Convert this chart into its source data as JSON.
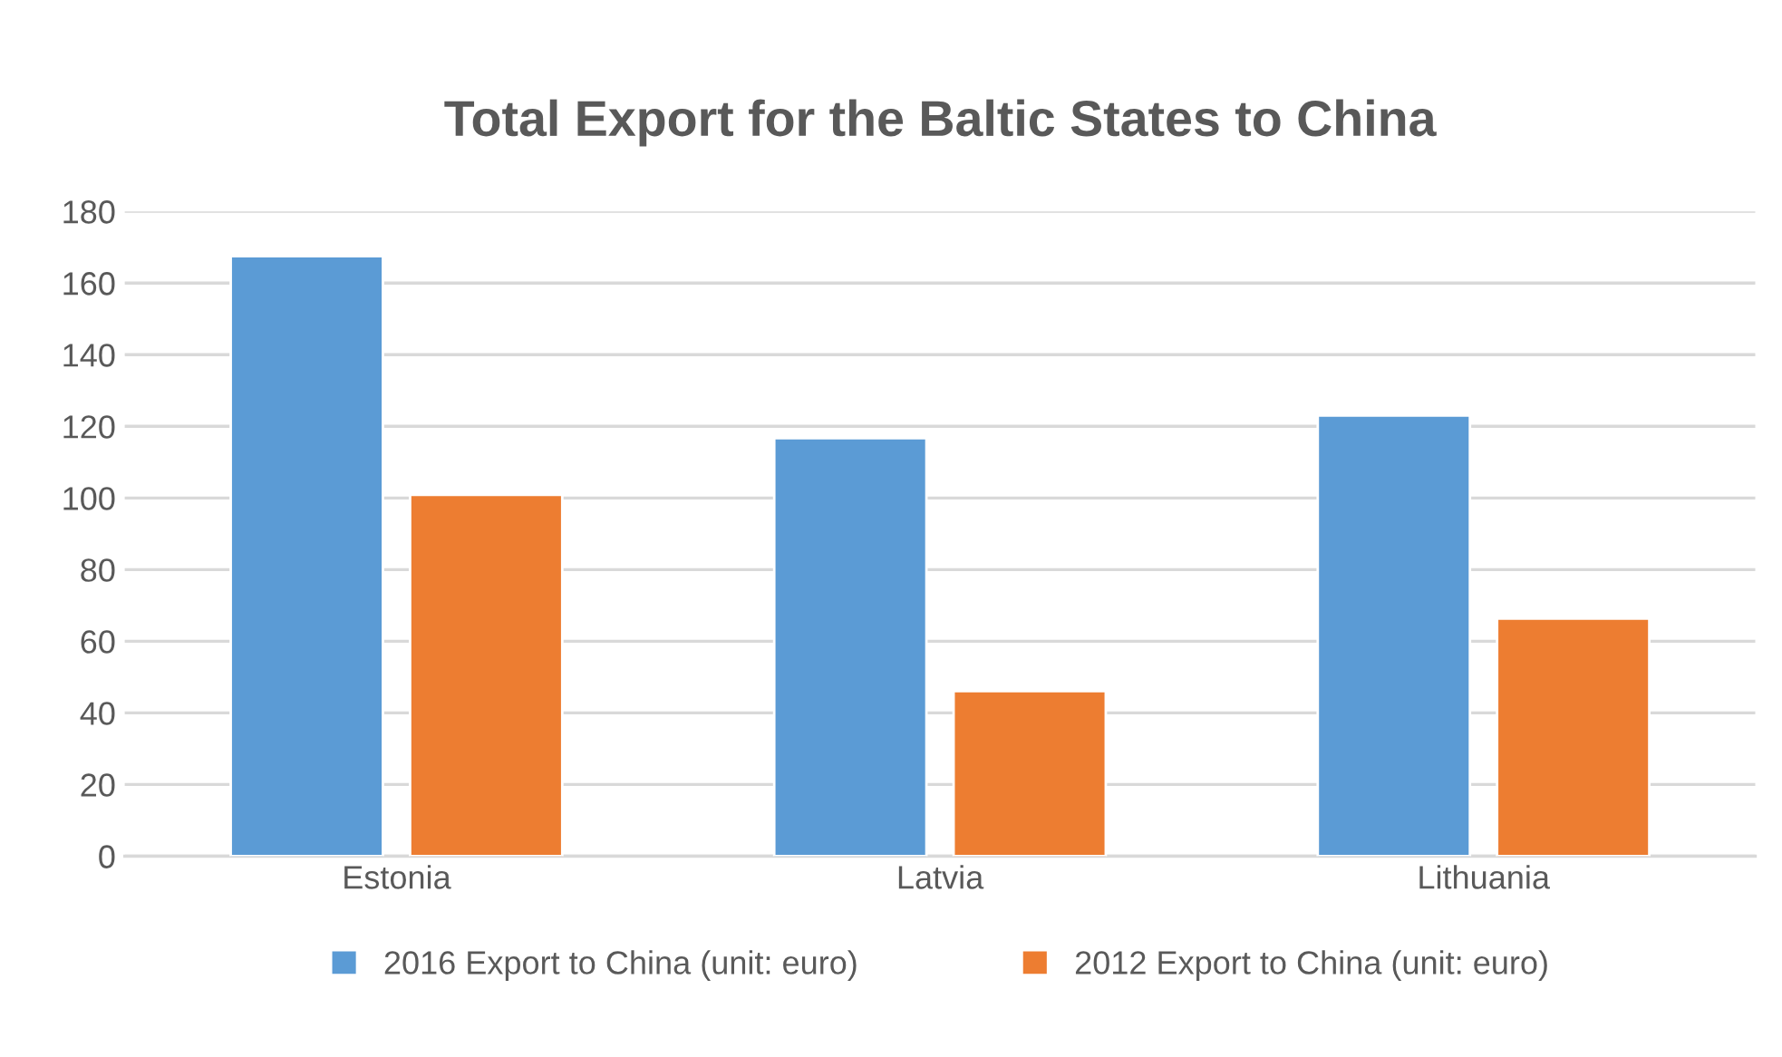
{
  "chart_data": {
    "type": "bar",
    "title": "Total Export for the Baltic States to China",
    "categories": [
      "Estonia",
      "Latvia",
      "Lithuania"
    ],
    "series": [
      {
        "name": "2016 Export to China (unit: euro)",
        "color": "#5b9bd5",
        "values": [
          167.5,
          116.7,
          123.0
        ]
      },
      {
        "name": "2012 Export to China (unit: euro)",
        "color": "#ed7d31",
        "values": [
          100.9,
          46.1,
          66.3
        ]
      }
    ],
    "ylim": [
      0,
      180
    ],
    "yticks": [
      0,
      20,
      40,
      60,
      80,
      100,
      120,
      140,
      160,
      180
    ],
    "grid": "y",
    "legend": "bottom"
  }
}
